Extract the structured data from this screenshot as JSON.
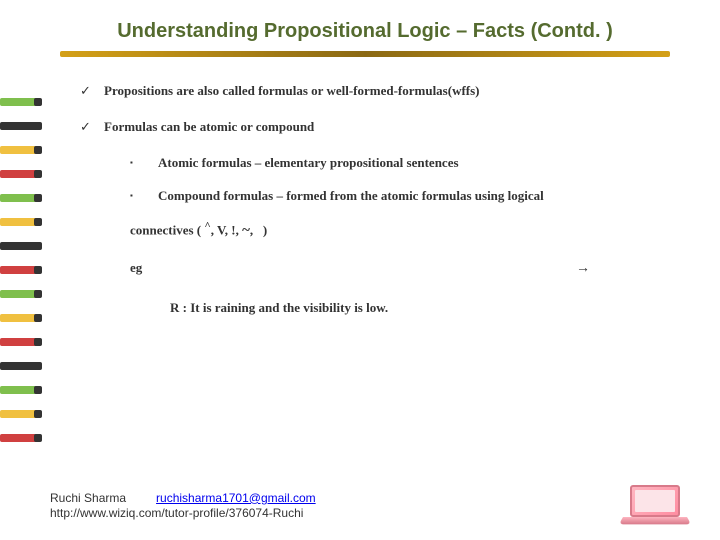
{
  "title": "Understanding Propositional  Logic – Facts (Contd. )",
  "bullets": {
    "b1": "Propositions are also called formulas or well-formed-formulas(wffs)",
    "b2": "Formulas can be atomic or compound"
  },
  "subBullets": {
    "s1": "Atomic formulas – elementary propositional sentences",
    "s2": "Compound formulas – formed from the atomic formulas using logical"
  },
  "connectivesPrefix": "connectives ( ",
  "connectivesSymbols": "^, V, !, ~,    )",
  "egLabel": "eg",
  "arrowGlyph": "→",
  "example": "R : It is raining and the visibility is low.",
  "footer": {
    "name": "Ruchi Sharma",
    "email": "ruchisharma1701@gmail.com",
    "url": "http://www.wiziq.com/tutor-profile/376074-Ruchi"
  },
  "checkGlyph": "✓",
  "squareGlyph": "▪",
  "colors": {
    "titleColor": "#556B2F",
    "linkColor": "#0000ee",
    "textColor": "#333333"
  }
}
